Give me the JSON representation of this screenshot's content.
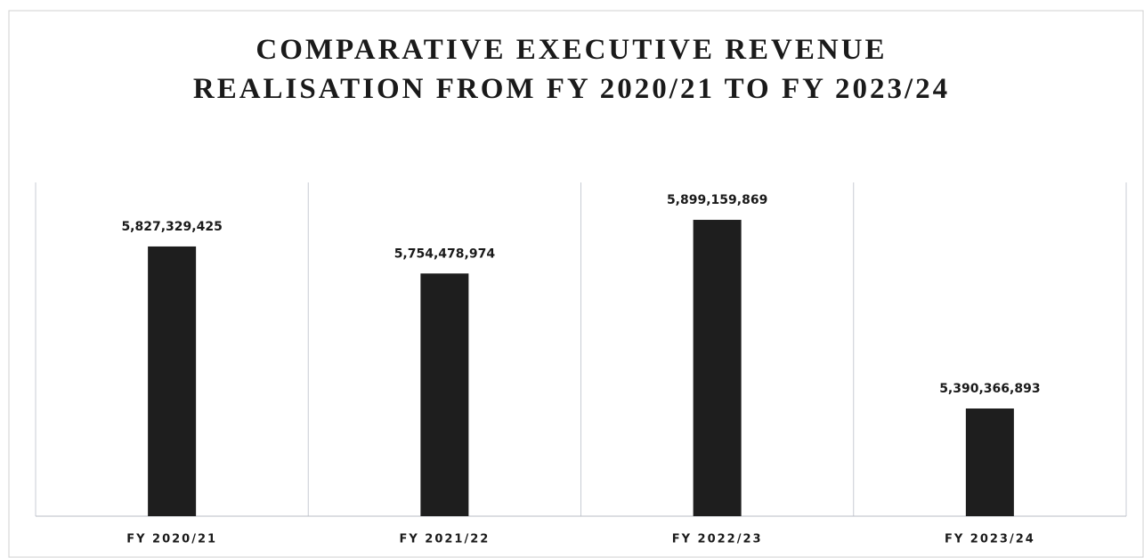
{
  "chart_data": {
    "type": "bar",
    "title": "COMPARATIVE EXECUTIVE REVENUE REALISATION FROM FY 2020/21 TO FY 2023/24",
    "categories": [
      "FY 2020/21",
      "FY 2021/22",
      "FY 2022/23",
      "FY 2023/24"
    ],
    "values": [
      5827329425,
      5754478974,
      5899159869,
      5390366893
    ],
    "value_labels": [
      "5,827,329,425",
      "5,754,478,974",
      "5,899,159,869",
      "5,390,366,893"
    ],
    "color": "#1e1e1e",
    "ylim": [
      5100000000,
      6000000000
    ]
  }
}
